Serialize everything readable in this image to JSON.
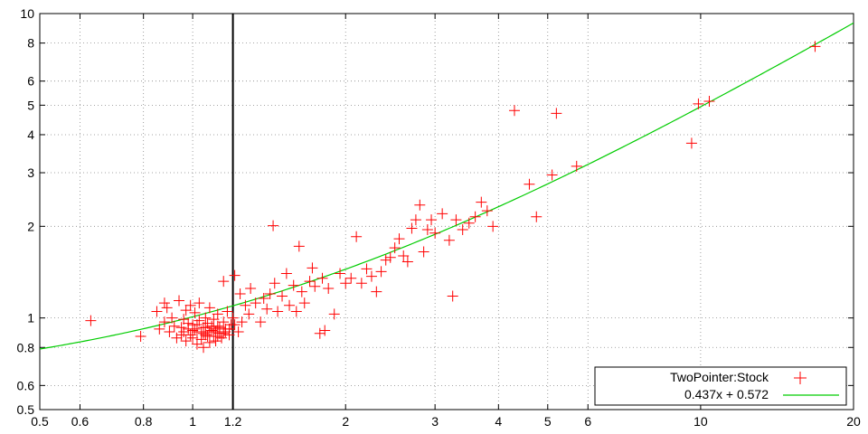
{
  "chart_data": {
    "type": "scatter",
    "title": "",
    "xlabel": "",
    "ylabel": "",
    "xscale": "log",
    "yscale": "log",
    "xlim": [
      0.5,
      20
    ],
    "ylim": [
      0.5,
      10
    ],
    "xticks": [
      0.5,
      0.6,
      0.8,
      1,
      1.2,
      2,
      3,
      4,
      5,
      6,
      10,
      20
    ],
    "xtick_labels": [
      "0.5",
      "0.6",
      "0.8",
      "1",
      "1.2",
      "2",
      "3",
      "4",
      "5",
      "6",
      "10",
      "20"
    ],
    "yticks": [
      0.5,
      0.6,
      0.8,
      1,
      2,
      3,
      4,
      5,
      6,
      8,
      10
    ],
    "ytick_labels": [
      "0.5",
      "0.6",
      "0.8",
      "1",
      "2",
      "3",
      "4",
      "5",
      "6",
      "8",
      "10"
    ],
    "grid": true,
    "legend_position": "bottom-right",
    "vertical_line": {
      "x": 1.2,
      "color": "#000000"
    },
    "colors": {
      "points": "#ff0000",
      "fit": "#00cc00",
      "grid": "#888888",
      "axis": "#000000"
    },
    "series": [
      {
        "name": "TwoPointer:Stock",
        "kind": "points",
        "marker": "plus",
        "points": [
          [
            0.63,
            0.98
          ],
          [
            0.79,
            0.87
          ],
          [
            0.85,
            1.05
          ],
          [
            0.86,
            0.92
          ],
          [
            0.88,
            1.12
          ],
          [
            0.88,
            0.97
          ],
          [
            0.89,
            1.08
          ],
          [
            0.9,
            0.9
          ],
          [
            0.91,
            1.0
          ],
          [
            0.92,
            0.94
          ],
          [
            0.93,
            0.86
          ],
          [
            0.94,
            1.14
          ],
          [
            0.95,
            0.88
          ],
          [
            0.96,
            0.99
          ],
          [
            0.97,
            0.84
          ],
          [
            0.97,
            1.06
          ],
          [
            0.98,
            0.92
          ],
          [
            0.99,
            1.1
          ],
          [
            1.0,
            0.86
          ],
          [
            1.0,
            0.95
          ],
          [
            1.01,
            1.04
          ],
          [
            1.02,
            0.82
          ],
          [
            1.02,
            0.9
          ],
          [
            1.03,
            0.98
          ],
          [
            1.03,
            1.12
          ],
          [
            1.04,
            0.85
          ],
          [
            1.05,
            0.93
          ],
          [
            1.05,
            0.8
          ],
          [
            1.06,
            1.0
          ],
          [
            1.06,
            0.88
          ],
          [
            1.07,
            0.96
          ],
          [
            1.08,
            0.83
          ],
          [
            1.08,
            1.08
          ],
          [
            1.09,
            0.91
          ],
          [
            1.1,
            0.87
          ],
          [
            1.1,
            0.99
          ],
          [
            1.11,
            0.84
          ],
          [
            1.12,
            0.94
          ],
          [
            1.12,
            1.03
          ],
          [
            1.13,
            0.89
          ],
          [
            1.14,
            0.86
          ],
          [
            1.15,
            0.97
          ],
          [
            1.16,
            0.92
          ],
          [
            1.17,
            1.05
          ],
          [
            1.18,
            0.88
          ],
          [
            1.19,
            0.95
          ],
          [
            1.2,
            1.0
          ],
          [
            0.96,
            0.9
          ],
          [
            0.99,
            0.88
          ],
          [
            1.01,
            0.92
          ],
          [
            1.04,
            0.9
          ],
          [
            1.07,
            0.87
          ],
          [
            1.09,
            0.94
          ],
          [
            1.11,
            0.9
          ],
          [
            1.13,
            0.93
          ],
          [
            1.15,
            0.89
          ],
          [
            0.98,
            0.96
          ],
          [
            1.02,
            0.95
          ],
          [
            1.06,
            0.93
          ],
          [
            1.1,
            0.92
          ],
          [
            0.95,
            0.93
          ],
          [
            1.0,
            0.91
          ],
          [
            1.05,
            0.89
          ],
          [
            1.08,
            0.9
          ],
          [
            1.12,
            0.87
          ],
          [
            1.16,
            0.9
          ],
          [
            1.18,
            0.92
          ],
          [
            1.21,
            0.95
          ],
          [
            1.23,
            0.9
          ],
          [
            1.25,
            0.97
          ],
          [
            1.15,
            1.32
          ],
          [
            1.21,
            1.38
          ],
          [
            1.24,
            1.2
          ],
          [
            1.27,
            1.1
          ],
          [
            1.29,
            1.03
          ],
          [
            1.3,
            1.25
          ],
          [
            1.33,
            1.12
          ],
          [
            1.36,
            0.97
          ],
          [
            1.38,
            1.16
          ],
          [
            1.4,
            1.07
          ],
          [
            1.42,
            1.2
          ],
          [
            1.44,
            2.01
          ],
          [
            1.45,
            1.3
          ],
          [
            1.47,
            1.05
          ],
          [
            1.5,
            1.18
          ],
          [
            1.53,
            1.4
          ],
          [
            1.55,
            1.1
          ],
          [
            1.58,
            1.28
          ],
          [
            1.6,
            1.05
          ],
          [
            1.62,
            1.72
          ],
          [
            1.64,
            1.22
          ],
          [
            1.66,
            1.12
          ],
          [
            1.7,
            1.32
          ],
          [
            1.72,
            1.46
          ],
          [
            1.74,
            1.27
          ],
          [
            1.78,
            0.89
          ],
          [
            1.8,
            1.35
          ],
          [
            1.82,
            0.91
          ],
          [
            1.85,
            1.25
          ],
          [
            1.9,
            1.03
          ],
          [
            1.95,
            1.4
          ],
          [
            2.0,
            1.3
          ],
          [
            2.05,
            1.35
          ],
          [
            2.1,
            1.85
          ],
          [
            2.15,
            1.3
          ],
          [
            2.2,
            1.45
          ],
          [
            2.25,
            1.37
          ],
          [
            2.3,
            1.22
          ],
          [
            2.35,
            1.42
          ],
          [
            2.4,
            1.55
          ],
          [
            2.45,
            1.58
          ],
          [
            2.5,
            1.7
          ],
          [
            2.55,
            1.82
          ],
          [
            2.6,
            1.6
          ],
          [
            2.65,
            1.53
          ],
          [
            2.7,
            1.97
          ],
          [
            2.75,
            2.1
          ],
          [
            2.8,
            2.35
          ],
          [
            2.85,
            1.65
          ],
          [
            2.9,
            1.95
          ],
          [
            2.95,
            2.1
          ],
          [
            3.0,
            1.9
          ],
          [
            3.1,
            2.2
          ],
          [
            3.2,
            1.8
          ],
          [
            3.25,
            1.18
          ],
          [
            3.3,
            2.1
          ],
          [
            3.4,
            1.95
          ],
          [
            3.5,
            2.05
          ],
          [
            3.6,
            2.15
          ],
          [
            3.7,
            2.4
          ],
          [
            3.8,
            2.25
          ],
          [
            3.9,
            2.0
          ],
          [
            4.3,
            4.8
          ],
          [
            4.6,
            2.75
          ],
          [
            4.75,
            2.15
          ],
          [
            5.1,
            2.95
          ],
          [
            5.2,
            4.7
          ],
          [
            5.7,
            3.15
          ],
          [
            9.6,
            3.75
          ],
          [
            9.9,
            5.05
          ],
          [
            10.4,
            5.15
          ],
          [
            16.8,
            7.8
          ]
        ]
      },
      {
        "name": "0.437x + 0.572",
        "kind": "line",
        "slope": 0.437,
        "intercept": 0.572
      }
    ]
  }
}
